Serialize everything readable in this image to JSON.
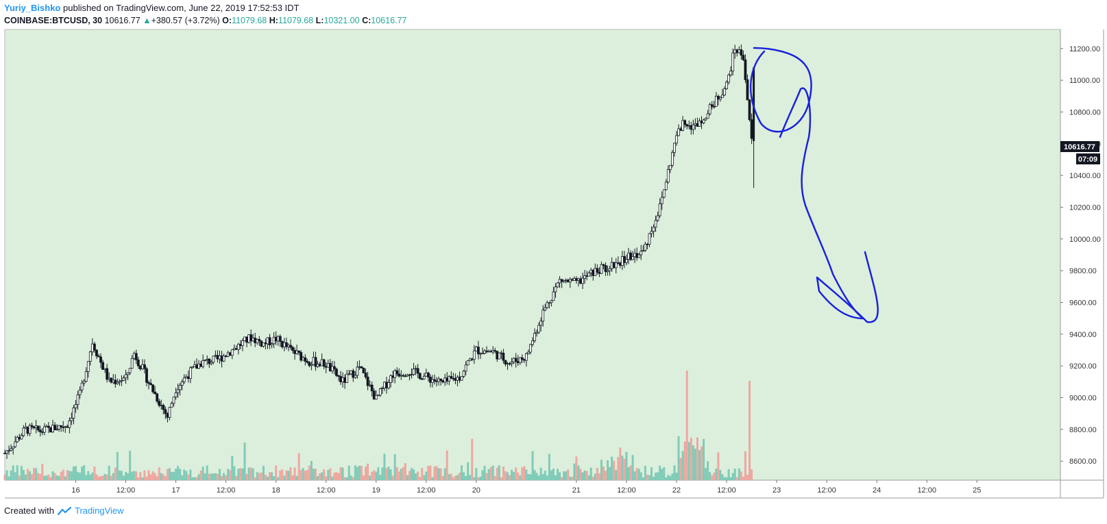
{
  "header": {
    "author": "Yuriy_Bishko",
    "published": "published on TradingView.com, June 22, 2019 17:52:53 IDT"
  },
  "quote": {
    "symbol": "COINBASE:BTCUSD, 30",
    "last": "10616.77",
    "change": "+380.57 (+3.72%)",
    "open_label": "O:",
    "open": "11079.68",
    "high_label": "H:",
    "high": "11079.68",
    "low_label": "L:",
    "low": "10321.00",
    "close_label": "C:",
    "close": "10616.77"
  },
  "footer": {
    "created_with": "Created with",
    "brand": "TradingView"
  },
  "colors": {
    "plot_bg": "#dcefdc",
    "candle": "#131722",
    "vol_up": "#7fcbb8",
    "vol_down": "#eea7a0",
    "annotation": "#1a22dd",
    "price_tag": "#131722"
  },
  "chart_data": {
    "type": "line",
    "title": "",
    "ylim": [
      8480,
      11320
    ],
    "y_ticks": [
      "11200.00",
      "11000.00",
      "10800.00",
      "10600.00",
      "10400.00",
      "10200.00",
      "10000.00",
      "9800.00",
      "9600.00",
      "9400.00",
      "9200.00",
      "9000.00",
      "8800.00",
      "8600.00"
    ],
    "y_tick_values": [
      11200,
      11000,
      10800,
      10600,
      10400,
      10200,
      10000,
      9800,
      9600,
      9400,
      9200,
      9000,
      8800,
      8600
    ],
    "x_ticks": [
      "16",
      "12:00",
      "17",
      "12:00",
      "18",
      "12:00",
      "19",
      "12:00",
      "20",
      "21",
      "12:00",
      "22",
      "12:00",
      "23",
      "12:00",
      "24",
      "12:00",
      "25"
    ],
    "x_tick_hours": [
      24,
      36,
      48,
      60,
      72,
      84,
      96,
      108,
      120,
      144,
      156,
      168,
      180,
      192,
      204,
      216,
      228,
      240
    ],
    "last_price_label": "10616.77",
    "countdown_label": "07:09",
    "series": [
      {
        "x_hours": [
          7,
          12,
          16,
          22,
          25,
          28,
          32,
          36,
          38,
          40,
          42,
          46,
          48,
          51,
          54,
          58,
          62,
          66,
          69,
          72,
          76,
          80,
          84,
          88,
          92,
          96,
          98,
          100,
          104,
          108,
          112,
          116,
          118,
          120,
          124,
          128,
          132,
          136,
          140,
          144,
          148,
          152,
          156,
          160,
          164,
          168,
          170,
          172,
          176,
          180,
          182,
          184,
          186
        ],
        "values": [
          8650,
          8800,
          8790,
          8830,
          9020,
          9350,
          9100,
          9120,
          9280,
          9180,
          9070,
          8880,
          9060,
          9150,
          9220,
          9240,
          9310,
          9380,
          9340,
          9370,
          9290,
          9230,
          9210,
          9100,
          9190,
          8990,
          9070,
          9150,
          9170,
          9130,
          9090,
          9130,
          9220,
          9300,
          9290,
          9220,
          9260,
          9540,
          9740,
          9720,
          9790,
          9830,
          9880,
          9920,
          10200,
          10650,
          10750,
          10700,
          10820,
          10970,
          11200,
          11150,
          10616
        ]
      }
    ]
  }
}
